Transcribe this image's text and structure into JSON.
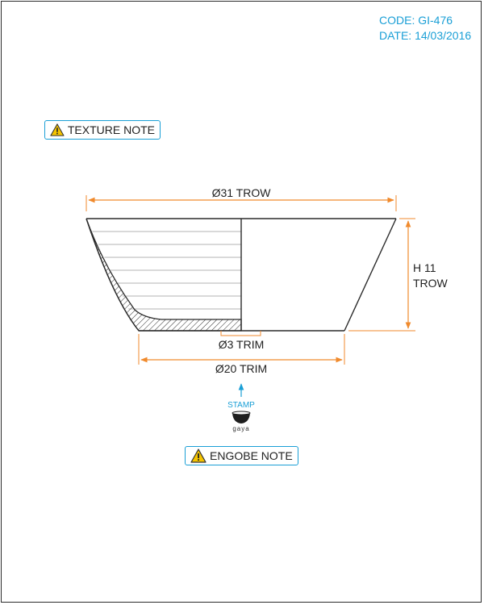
{
  "title_block": {
    "code": "CODE: GI-476",
    "date": "DATE: 14/03/2016"
  },
  "notes": {
    "texture": "TEXTURE NOTE",
    "engobe": "ENGOBE NOTE",
    "icon": "warning-triangle-icon"
  },
  "dimensions": {
    "top_diameter": "Ø31 TROW",
    "height_line1": "H 11",
    "height_line2": "TROW",
    "foot_inner": "Ø3 TRIM",
    "base_diameter": "Ø20 TRIM"
  },
  "stamp": {
    "label": "STAMP",
    "mark_text": "gaya"
  },
  "colors": {
    "accent_blue": "#1a9fd6",
    "dimension_orange": "#f08a2c",
    "outline": "#2b2b2b",
    "warning_yellow": "#f5c400"
  }
}
